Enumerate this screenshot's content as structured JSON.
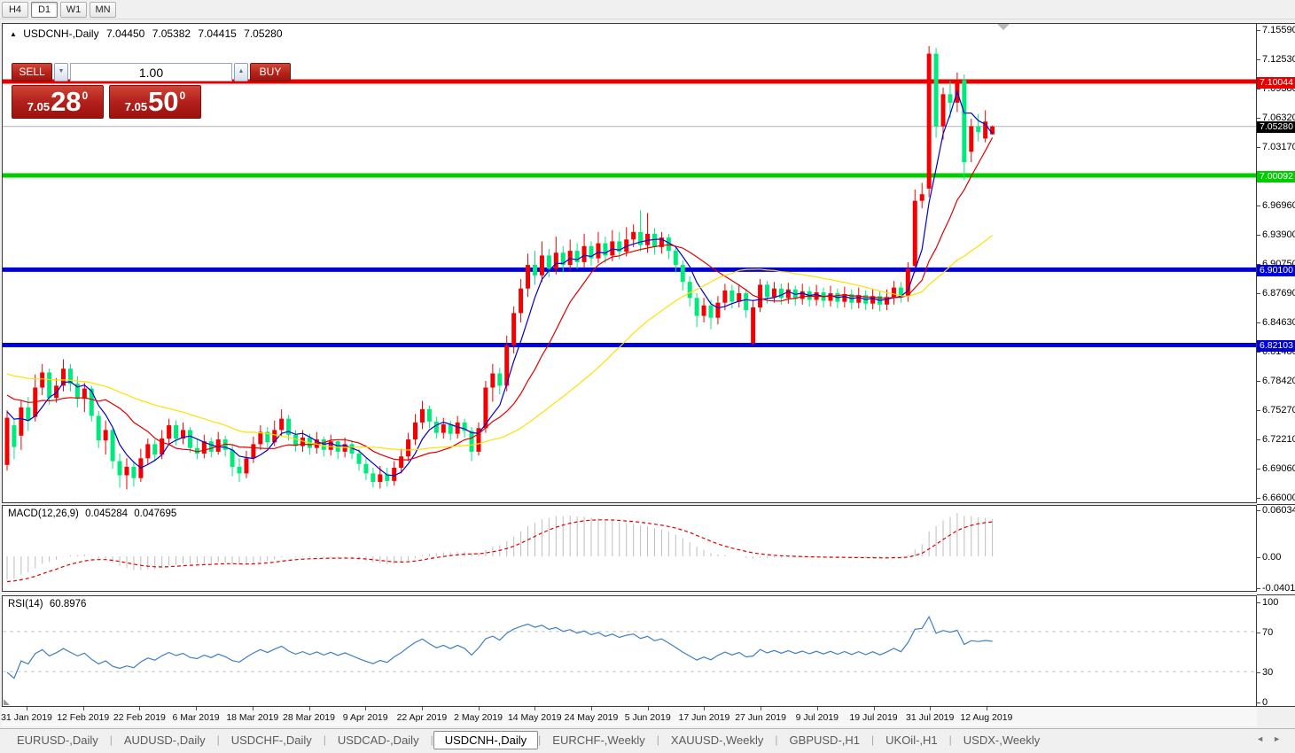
{
  "toolbar": {
    "timeframes": [
      "H4",
      "D1",
      "W1",
      "MN"
    ],
    "active": "D1"
  },
  "icons": {
    "collapse": "▲",
    "spinner_up": "▲",
    "spinner_down": "▼",
    "tab_scroll_left": "◄",
    "tab_scroll_right": "►"
  },
  "chart_header": {
    "symbol": "USDCNH-,Daily",
    "open": "7.04450",
    "high": "7.05382",
    "low": "7.04415",
    "close": "7.05280"
  },
  "trade_panel": {
    "sell_label": "SELL",
    "buy_label": "BUY",
    "volume": "1.00",
    "sell_price": {
      "small": "7.05",
      "big": "28",
      "sup": "0"
    },
    "buy_price": {
      "small": "7.05",
      "big": "50",
      "sup": "0"
    }
  },
  "price_axis": {
    "ticks": [
      "7.15590",
      "7.12530",
      "7.09380",
      "7.06320",
      "7.03170",
      "7.00110",
      "6.96960",
      "6.93900",
      "6.90750",
      "6.87690",
      "6.84630",
      "6.81480",
      "6.78420",
      "6.75270",
      "6.72210",
      "6.69060",
      "6.66000"
    ]
  },
  "current_price": {
    "value": 7.0528,
    "label": "7.05280",
    "flag_color": "#000000",
    "line_color": "#b4b4b4"
  },
  "hlines": [
    {
      "value": 7.10044,
      "label": "7.10044",
      "color": "#e60000"
    },
    {
      "value": 7.00092,
      "label": "7.00092",
      "color": "#00cc00"
    },
    {
      "value": 6.901,
      "label": "6.90100",
      "color": "#0000d8"
    },
    {
      "value": 6.82103,
      "label": "6.82103",
      "color": "#0000d8"
    }
  ],
  "macd_panel": {
    "name": "MACD(12,26,9)",
    "value": "0.045284",
    "signal": "0.047695",
    "axis": [
      {
        "v": 0.060343,
        "label": "0.060343"
      },
      {
        "v": 0.0,
        "label": "0.00"
      },
      {
        "v": -0.040136,
        "label": "-0.040136"
      }
    ],
    "bar_color": "#bdbdbd",
    "signal_color": "#dd0000"
  },
  "rsi_panel": {
    "name": "RSI(14)",
    "value": "60.8976",
    "axis": [
      {
        "v": 100,
        "label": "100"
      },
      {
        "v": 70,
        "label": "70"
      },
      {
        "v": 30,
        "label": "30"
      },
      {
        "v": 0,
        "label": "0"
      }
    ],
    "levels": [
      70,
      30
    ],
    "line_color": "#3f7fc1"
  },
  "date_axis": [
    "31 Jan 2019",
    "12 Feb 2019",
    "22 Feb 2019",
    "6 Mar 2019",
    "18 Mar 2019",
    "28 Mar 2019",
    "9 Apr 2019",
    "22 Apr 2019",
    "2 May 2019",
    "14 May 2019",
    "24 May 2019",
    "5 Jun 2019",
    "17 Jun 2019",
    "27 Jun 2019",
    "9 Jul 2019",
    "19 Jul 2019",
    "31 Jul 2019",
    "12 Aug 2019"
  ],
  "tabs": {
    "items": [
      "EURUSD-,Daily",
      "AUDUSD-,Daily",
      "USDCHF-,Daily",
      "USDCAD-,Daily",
      "USDCNH-,Daily",
      "EURCHF-,Weekly",
      "XAUUSD-,Weekly",
      "GBPUSD-,H1",
      "UKOil-,H1",
      "USDX-,Weekly"
    ],
    "active": "USDCNH-,Daily"
  },
  "chart_data": {
    "type": "candlestick",
    "symbol": "USDCNH",
    "timeframe": "Daily",
    "ylim": [
      6.66,
      7.1559
    ],
    "bull_color": "#f40000",
    "bear_color": "#00e97c",
    "mas": [
      {
        "period": 5,
        "color": "#0000cc",
        "seed": 6.752
      },
      {
        "period": 13,
        "color": "#e00000",
        "seed": 6.77
      },
      {
        "period": 34,
        "color": "#ffe000",
        "seed": 6.792
      }
    ],
    "macd": {
      "fast": 12,
      "slow": 26,
      "signal": 9,
      "seed_fast": 6.717,
      "seed_slow": 6.752,
      "seed_signal": -0.033
    },
    "rsi": {
      "period": 14,
      "seed_gain": 0.0028,
      "seed_loss": 0.0068
    },
    "candles": [
      [
        6.694,
        6.752,
        6.688,
        6.744
      ],
      [
        6.736,
        6.742,
        6.7,
        6.713
      ],
      [
        6.725,
        6.762,
        6.71,
        6.755
      ],
      [
        6.755,
        6.766,
        6.73,
        6.741
      ],
      [
        6.745,
        6.79,
        6.74,
        6.776
      ],
      [
        6.776,
        6.801,
        6.768,
        6.792
      ],
      [
        6.792,
        6.796,
        6.758,
        6.765
      ],
      [
        6.765,
        6.786,
        6.76,
        6.778
      ],
      [
        6.778,
        6.806,
        6.772,
        6.796
      ],
      [
        6.796,
        6.801,
        6.772,
        6.78
      ],
      [
        6.78,
        6.788,
        6.755,
        6.764
      ],
      [
        6.764,
        6.781,
        6.75,
        6.775
      ],
      [
        6.775,
        6.778,
        6.74,
        6.746
      ],
      [
        6.746,
        6.751,
        6.712,
        6.72
      ],
      [
        6.72,
        6.741,
        6.705,
        6.731
      ],
      [
        6.731,
        6.733,
        6.69,
        6.698
      ],
      [
        6.698,
        6.706,
        6.67,
        6.683
      ],
      [
        6.683,
        6.701,
        6.668,
        6.692
      ],
      [
        6.692,
        6.698,
        6.671,
        6.68
      ],
      [
        6.68,
        6.711,
        6.676,
        6.701
      ],
      [
        6.701,
        6.722,
        6.695,
        6.716
      ],
      [
        6.716,
        6.721,
        6.698,
        6.705
      ],
      [
        6.705,
        6.731,
        6.7,
        6.722
      ],
      [
        6.722,
        6.743,
        6.715,
        6.736
      ],
      [
        6.736,
        6.741,
        6.715,
        6.722
      ],
      [
        6.722,
        6.739,
        6.716,
        6.731
      ],
      [
        6.731,
        6.734,
        6.707,
        6.712
      ],
      [
        6.712,
        6.721,
        6.7,
        6.706
      ],
      [
        6.706,
        6.726,
        6.701,
        6.719
      ],
      [
        6.719,
        6.723,
        6.702,
        6.708
      ],
      [
        6.708,
        6.729,
        6.705,
        6.721
      ],
      [
        6.721,
        6.725,
        6.703,
        6.71
      ],
      [
        6.71,
        6.715,
        6.682,
        6.692
      ],
      [
        6.692,
        6.701,
        6.676,
        6.685
      ],
      [
        6.685,
        6.709,
        6.68,
        6.701
      ],
      [
        6.701,
        6.724,
        6.696,
        6.716
      ],
      [
        6.716,
        6.736,
        6.71,
        6.729
      ],
      [
        6.729,
        6.734,
        6.712,
        6.718
      ],
      [
        6.718,
        6.741,
        6.714,
        6.731
      ],
      [
        6.731,
        6.753,
        6.725,
        6.743
      ],
      [
        6.743,
        6.747,
        6.72,
        6.726
      ],
      [
        6.726,
        6.731,
        6.708,
        6.714
      ],
      [
        6.714,
        6.731,
        6.708,
        6.723
      ],
      [
        6.723,
        6.727,
        6.705,
        6.712
      ],
      [
        6.712,
        6.729,
        6.706,
        6.721
      ],
      [
        6.721,
        6.724,
        6.703,
        6.71
      ],
      [
        6.71,
        6.726,
        6.704,
        6.719
      ],
      [
        6.719,
        6.721,
        6.7,
        6.708
      ],
      [
        6.708,
        6.723,
        6.702,
        6.716
      ],
      [
        6.716,
        6.72,
        6.7,
        6.706
      ],
      [
        6.706,
        6.711,
        6.688,
        6.695
      ],
      [
        6.695,
        6.701,
        6.678,
        6.685
      ],
      [
        6.685,
        6.691,
        6.67,
        6.676
      ],
      [
        6.676,
        6.693,
        6.669,
        6.684
      ],
      [
        6.684,
        6.691,
        6.671,
        6.677
      ],
      [
        6.677,
        6.698,
        6.672,
        6.691
      ],
      [
        6.691,
        6.711,
        6.685,
        6.703
      ],
      [
        6.703,
        6.728,
        6.698,
        6.721
      ],
      [
        6.721,
        6.748,
        6.715,
        6.739
      ],
      [
        6.739,
        6.762,
        6.732,
        6.753
      ],
      [
        6.753,
        6.757,
        6.733,
        6.74
      ],
      [
        6.74,
        6.745,
        6.722,
        6.728
      ],
      [
        6.728,
        6.744,
        6.722,
        6.737
      ],
      [
        6.737,
        6.741,
        6.72,
        6.727
      ],
      [
        6.727,
        6.746,
        6.722,
        6.739
      ],
      [
        6.739,
        6.743,
        6.723,
        6.73
      ],
      [
        6.73,
        6.734,
        6.698,
        6.708
      ],
      [
        6.708,
        6.739,
        6.704,
        6.733
      ],
      [
        6.733,
        6.783,
        6.728,
        6.776
      ],
      [
        6.776,
        6.801,
        6.761,
        6.791
      ],
      [
        6.791,
        6.797,
        6.769,
        6.778
      ],
      [
        6.778,
        6.831,
        6.772,
        6.821
      ],
      [
        6.821,
        6.862,
        6.812,
        6.855
      ],
      [
        6.855,
        6.891,
        6.845,
        6.881
      ],
      [
        6.881,
        6.918,
        6.872,
        6.906
      ],
      [
        6.906,
        6.921,
        6.885,
        6.895
      ],
      [
        6.895,
        6.931,
        6.888,
        6.916
      ],
      [
        6.916,
        6.923,
        6.893,
        6.902
      ],
      [
        6.902,
        6.936,
        6.896,
        6.919
      ],
      [
        6.919,
        6.926,
        6.898,
        6.906
      ],
      [
        6.906,
        6.933,
        6.9,
        6.921
      ],
      [
        6.921,
        6.929,
        6.902,
        6.909
      ],
      [
        6.909,
        6.939,
        6.903,
        6.926
      ],
      [
        6.926,
        6.931,
        6.905,
        6.913
      ],
      [
        6.913,
        6.941,
        6.908,
        6.929
      ],
      [
        6.929,
        6.936,
        6.908,
        6.916
      ],
      [
        6.916,
        6.943,
        6.91,
        6.931
      ],
      [
        6.931,
        6.941,
        6.912,
        6.92
      ],
      [
        6.92,
        6.946,
        6.915,
        6.933
      ],
      [
        6.933,
        6.949,
        6.925,
        6.941
      ],
      [
        6.941,
        6.964,
        6.92,
        6.927
      ],
      [
        6.927,
        6.961,
        6.919,
        6.939
      ],
      [
        6.939,
        6.945,
        6.917,
        6.925
      ],
      [
        6.925,
        6.941,
        6.918,
        6.935
      ],
      [
        6.935,
        6.939,
        6.912,
        6.921
      ],
      [
        6.921,
        6.925,
        6.898,
        6.906
      ],
      [
        6.906,
        6.911,
        6.879,
        6.888
      ],
      [
        6.888,
        6.894,
        6.862,
        6.871
      ],
      [
        6.871,
        6.876,
        6.84,
        6.852
      ],
      [
        6.852,
        6.871,
        6.845,
        6.863
      ],
      [
        6.863,
        6.869,
        6.838,
        6.85
      ],
      [
        6.85,
        6.873,
        6.843,
        6.866
      ],
      [
        6.866,
        6.886,
        6.858,
        6.879
      ],
      [
        6.879,
        6.885,
        6.86,
        6.867
      ],
      [
        6.867,
        6.884,
        6.861,
        6.876
      ],
      [
        6.876,
        6.881,
        6.85,
        6.858
      ],
      [
        6.823,
        6.869,
        6.821,
        6.861
      ],
      [
        6.861,
        6.891,
        6.856,
        6.885
      ],
      [
        6.885,
        6.889,
        6.865,
        6.872
      ],
      [
        6.872,
        6.888,
        6.866,
        6.881
      ],
      [
        6.881,
        6.886,
        6.864,
        6.871
      ],
      [
        6.871,
        6.887,
        6.865,
        6.88
      ],
      [
        6.88,
        6.884,
        6.863,
        6.87
      ],
      [
        6.87,
        6.886,
        6.864,
        6.878
      ],
      [
        6.878,
        6.883,
        6.862,
        6.869
      ],
      [
        6.869,
        6.885,
        6.863,
        6.877
      ],
      [
        6.877,
        6.882,
        6.861,
        6.868
      ],
      [
        6.868,
        6.884,
        6.862,
        6.876
      ],
      [
        6.876,
        6.881,
        6.86,
        6.867
      ],
      [
        6.867,
        6.883,
        6.861,
        6.875
      ],
      [
        6.875,
        6.88,
        6.859,
        6.866
      ],
      [
        6.866,
        6.882,
        6.86,
        6.874
      ],
      [
        6.874,
        6.879,
        6.858,
        6.865
      ],
      [
        6.865,
        6.881,
        6.859,
        6.873
      ],
      [
        6.873,
        6.878,
        6.857,
        6.864
      ],
      [
        6.864,
        6.88,
        6.858,
        6.872
      ],
      [
        6.872,
        6.889,
        6.864,
        6.882
      ],
      [
        6.882,
        6.888,
        6.866,
        6.873
      ],
      [
        6.873,
        6.909,
        6.867,
        6.902
      ],
      [
        6.905,
        6.986,
        6.898,
        6.974
      ],
      [
        6.974,
        6.993,
        6.966,
        6.981
      ],
      [
        6.987,
        7.138,
        6.978,
        7.13
      ],
      [
        7.13,
        7.136,
        7.041,
        7.053
      ],
      [
        7.053,
        7.094,
        7.039,
        7.087
      ],
      [
        7.087,
        7.101,
        7.062,
        7.078
      ],
      [
        7.078,
        7.11,
        7.068,
        7.102
      ],
      [
        7.102,
        7.108,
        6.996,
        7.015
      ],
      [
        7.026,
        7.061,
        7.015,
        7.053
      ],
      [
        7.053,
        7.066,
        7.037,
        7.047
      ],
      [
        7.04,
        7.07,
        7.036,
        7.058
      ],
      [
        7.0445,
        7.0538,
        7.0442,
        7.0528
      ]
    ]
  }
}
